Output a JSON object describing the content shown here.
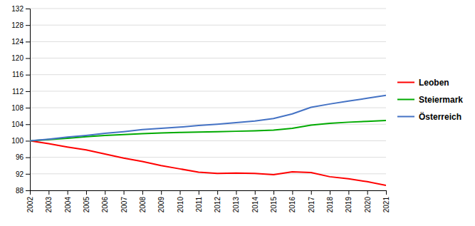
{
  "chart_data": {
    "type": "line",
    "x": [
      2002,
      2003,
      2004,
      2005,
      2006,
      2007,
      2008,
      2009,
      2010,
      2011,
      2012,
      2013,
      2014,
      2015,
      2016,
      2017,
      2018,
      2019,
      2020,
      2021
    ],
    "series": [
      {
        "name": "Leoben",
        "color": "#ff0000",
        "values": [
          100.0,
          99.3,
          98.5,
          97.8,
          96.8,
          95.8,
          95.0,
          94.0,
          93.2,
          92.4,
          92.1,
          92.2,
          92.1,
          91.8,
          92.5,
          92.3,
          91.3,
          90.8,
          90.1,
          89.2
        ]
      },
      {
        "name": "Steiermark",
        "color": "#00aa00",
        "values": [
          100.0,
          100.3,
          100.6,
          101.0,
          101.3,
          101.5,
          101.7,
          101.9,
          102.0,
          102.1,
          102.2,
          102.3,
          102.4,
          102.6,
          103.0,
          103.8,
          104.2,
          104.5,
          104.7,
          104.9
        ]
      },
      {
        "name": "Österreich",
        "color": "#4472c4",
        "values": [
          100.0,
          100.4,
          100.9,
          101.3,
          101.8,
          102.2,
          102.7,
          103.0,
          103.3,
          103.7,
          104.0,
          104.4,
          104.8,
          105.4,
          106.5,
          108.1,
          108.9,
          109.6,
          110.3,
          111.0
        ]
      }
    ],
    "xlim": [
      2002,
      2021
    ],
    "xticks": [
      2002,
      2003,
      2004,
      2005,
      2006,
      2007,
      2008,
      2009,
      2010,
      2011,
      2012,
      2013,
      2014,
      2015,
      2016,
      2017,
      2018,
      2019,
      2020,
      2021
    ],
    "ylim": [
      88,
      132
    ],
    "yticks": [
      88,
      92,
      96,
      100,
      104,
      108,
      112,
      116,
      120,
      124,
      128,
      132
    ],
    "grid": true,
    "legend": "right"
  }
}
